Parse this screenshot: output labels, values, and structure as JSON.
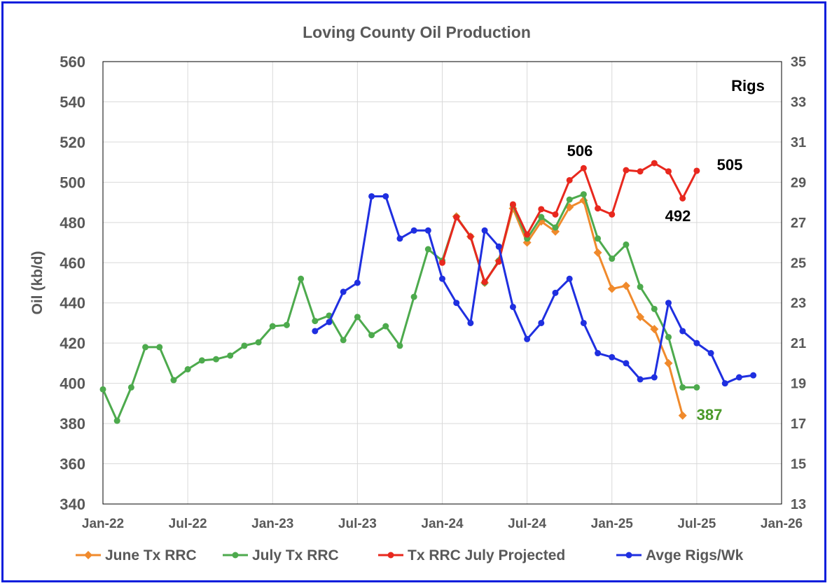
{
  "chart_data": {
    "type": "line",
    "title": "Loving County Oil Production",
    "ylabel": "Oil (kb/d)",
    "y2label": "Rigs",
    "ylim": [
      340,
      560
    ],
    "y_ticks": [
      "340",
      "360",
      "380",
      "400",
      "420",
      "440",
      "460",
      "480",
      "500",
      "520",
      "540",
      "560"
    ],
    "y2lim": [
      13,
      35
    ],
    "y2_ticks": [
      "13",
      "15",
      "17",
      "19",
      "21",
      "23",
      "25",
      "27",
      "29",
      "31",
      "33",
      "35"
    ],
    "x_start": "Jan-22",
    "x_ticks": [
      "Jan-22",
      "Jul-22",
      "Jan-23",
      "Jul-23",
      "Jan-24",
      "Jul-24",
      "Jan-25",
      "Jul-25",
      "Jan-26"
    ],
    "grid": true,
    "legend_position": "bottom",
    "series": [
      {
        "name": "June Tx RRC",
        "color": "#f08a2c",
        "marker": "diamond",
        "axis": "left",
        "start_month": 25,
        "values": [
          483,
          473,
          450,
          461,
          487,
          470,
          480.5,
          475.5,
          487.6,
          491,
          465,
          447,
          448.5,
          433,
          427,
          410,
          384
        ]
      },
      {
        "name": "July Tx RRC",
        "color": "#4daa4d",
        "marker": "circle",
        "axis": "left",
        "start_month": 0,
        "values": [
          397,
          381.4,
          398,
          418,
          418,
          401.6,
          407,
          411.4,
          412,
          413.8,
          418.7,
          420.4,
          428.4,
          429,
          452,
          431,
          433.7,
          421.5,
          433,
          424,
          428.4,
          418.7,
          443,
          466.7,
          461,
          482.7,
          473,
          450,
          461,
          488.6,
          472,
          482.7,
          477.5,
          491.4,
          494,
          472,
          462,
          469,
          448,
          437,
          423,
          398,
          398
        ]
      },
      {
        "name": "Tx RRC July Projected",
        "color": "#e8281e",
        "marker": "circle",
        "axis": "left",
        "start_month": 24,
        "values": [
          460,
          482.6,
          473,
          450.4,
          460.5,
          489,
          474,
          486.6,
          484,
          501,
          507,
          487,
          484,
          506,
          505.4,
          509.5,
          505.4,
          492,
          505.7
        ]
      },
      {
        "name": "Avge Rigs/Wk",
        "color": "#1f2fe0",
        "marker": "circle",
        "axis": "right",
        "start_month": 15,
        "values": [
          21.6,
          22.05,
          23.55,
          24,
          28.3,
          28.3,
          26.2,
          26.6,
          26.6,
          24.2,
          23,
          22,
          26.6,
          25.8,
          22.8,
          21.2,
          22,
          23.5,
          24.2,
          22,
          20.5,
          20.3,
          20,
          19.2,
          19.3,
          23,
          21.6,
          21,
          20.5,
          19,
          19.3,
          19.4
        ]
      }
    ],
    "annotations": [
      {
        "text": "506",
        "color": "#000000"
      },
      {
        "text": "505",
        "color": "#000000"
      },
      {
        "text": "492",
        "color": "#000000"
      },
      {
        "text": "387",
        "color": "#4a9a2a"
      }
    ]
  }
}
